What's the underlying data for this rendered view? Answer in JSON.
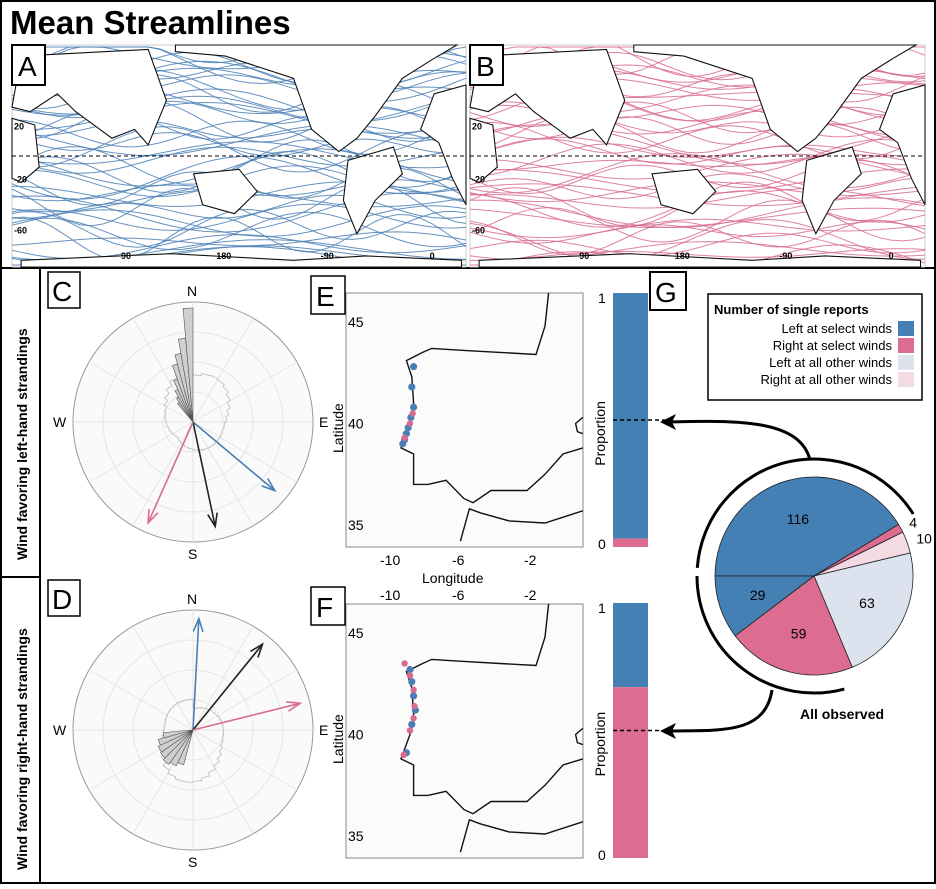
{
  "title": "Mean Streamlines",
  "panels": {
    "A": "A",
    "B": "B",
    "C": "C",
    "D": "D",
    "E": "E",
    "F": "F",
    "G": "G"
  },
  "row_labels": {
    "top": "Wind favoring left-hand strandings",
    "bottom": "Wind favoring right-hand strandings"
  },
  "colors": {
    "blue": "#4a7fb5",
    "pink": "#d96b8f",
    "light_blue": "#dce3ee",
    "light_pink": "#f2dbe3",
    "left_select": "#4580b4",
    "right_select": "#dc6d91"
  },
  "chart_data": [
    {
      "type": "streamlines",
      "panel": "A",
      "color": "#4a7fb5",
      "lat_ticks": [
        "20",
        "-20",
        "-60"
      ],
      "lon_ticks": [
        "90",
        "180",
        "-90",
        "0"
      ]
    },
    {
      "type": "streamlines",
      "panel": "B",
      "color": "#d96b8f",
      "lat_ticks": [
        "20",
        "-20",
        "-60"
      ],
      "lon_ticks": [
        "90",
        "180",
        "-90",
        "0"
      ]
    },
    {
      "type": "rose",
      "panel": "C",
      "compass": [
        "N",
        "S",
        "W",
        "E"
      ],
      "bins_bearing_start": [
        -40,
        -35,
        -30,
        -25,
        -20,
        -15,
        -10,
        -5
      ],
      "bins_relative": [
        0.2,
        0.24,
        0.3,
        0.38,
        0.5,
        0.58,
        0.7,
        0.95
      ],
      "arrows": [
        {
          "series": "left",
          "color": "#4a7fb5",
          "bearing": 130,
          "length": 0.89
        },
        {
          "series": "all",
          "color": "#222222",
          "bearing": 168,
          "length": 0.89
        },
        {
          "series": "right",
          "color": "#d96b8f",
          "bearing": 204,
          "length": 0.92
        }
      ]
    },
    {
      "type": "rose",
      "panel": "D",
      "compass": [
        "N",
        "S",
        "W",
        "E"
      ],
      "bins_bearing_start": [
        195,
        205,
        215,
        225,
        235,
        245,
        255
      ],
      "bins_relative": [
        0.3,
        0.33,
        0.35,
        0.33,
        0.32,
        0.3,
        0.25
      ],
      "arrows": [
        {
          "series": "left",
          "color": "#4a7fb5",
          "bearing": 3,
          "length": 0.93
        },
        {
          "series": "all",
          "color": "#222222",
          "bearing": 39,
          "length": 0.92
        },
        {
          "series": "right",
          "color": "#d96b8f",
          "bearing": 76,
          "length": 0.92
        }
      ]
    },
    {
      "type": "scatter",
      "panel": "E",
      "xlabel": "Longitude",
      "ylabel": "Latitude",
      "x_ticks": [
        "-10",
        "-6",
        "-2"
      ],
      "y_ticks": [
        "45",
        "40",
        "35"
      ],
      "blue_points": [
        [
          -8.8,
          42.8
        ],
        [
          -8.9,
          41.8
        ],
        [
          -8.8,
          40.8
        ],
        [
          -8.95,
          40.3
        ],
        [
          -9.1,
          39.8
        ],
        [
          -9.2,
          39.5
        ],
        [
          -9.4,
          39.0
        ],
        [
          -9.3,
          39.2
        ]
      ],
      "pink_points": [
        [
          -8.85,
          40.5
        ],
        [
          -9.0,
          40.0
        ],
        [
          -9.3,
          39.3
        ]
      ]
    },
    {
      "type": "scatter",
      "panel": "F",
      "xlabel": "",
      "ylabel": "Latitude",
      "x_ticks": [
        "-10",
        "-6",
        "-2"
      ],
      "y_ticks": [
        "45",
        "40",
        "35"
      ],
      "blue_points": [
        [
          -9.0,
          43.2
        ],
        [
          -8.9,
          42.6
        ],
        [
          -8.8,
          41.9
        ],
        [
          -8.7,
          41.2
        ],
        [
          -8.9,
          40.5
        ],
        [
          -9.2,
          39.1
        ]
      ],
      "pink_points": [
        [
          -9.3,
          43.5
        ],
        [
          -9.0,
          42.9
        ],
        [
          -8.8,
          42.2
        ],
        [
          -8.75,
          41.4
        ],
        [
          -8.8,
          40.8
        ],
        [
          -9.0,
          40.2
        ],
        [
          -9.35,
          39.0
        ]
      ]
    },
    {
      "type": "bar",
      "panel": "E",
      "ylabel": "Proportion",
      "y_ticks": [
        "1",
        "0"
      ],
      "left_fraction": 0.967,
      "right_fraction": 0.033
    },
    {
      "type": "bar",
      "panel": "F",
      "ylabel": "Proportion",
      "y_ticks": [
        "1",
        "0"
      ],
      "left_fraction": 0.33,
      "right_fraction": 0.67
    },
    {
      "type": "pie",
      "panel": "G",
      "title": "Number of single reports",
      "caption": "All observed",
      "legend": [
        "Left at select winds",
        "Right at select winds",
        "Left at all other winds",
        "Right at all other winds"
      ],
      "slices": [
        {
          "label": "116",
          "value": 116,
          "category": "Left at select winds",
          "color": "#4580b4"
        },
        {
          "label": "4",
          "value": 4,
          "category": "Right at select winds",
          "color": "#dc6d91"
        },
        {
          "label": "10",
          "value": 10,
          "category": "Right at all other winds",
          "color": "#f2dbe3"
        },
        {
          "label": "63",
          "value": 63,
          "category": "Left at all other winds",
          "color": "#dce3ee"
        },
        {
          "label": "59",
          "value": 59,
          "category": "Right at select winds",
          "color": "#dc6d91"
        },
        {
          "label": "29",
          "value": 29,
          "category": "Left at select winds",
          "color": "#4580b4"
        }
      ]
    }
  ]
}
